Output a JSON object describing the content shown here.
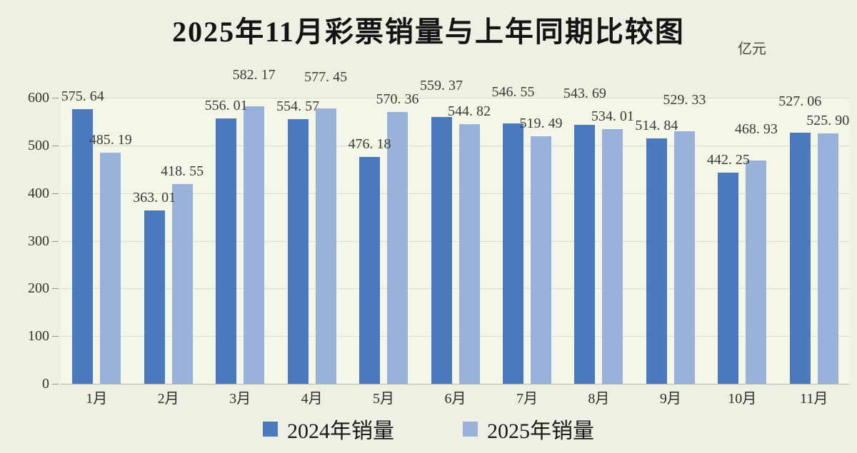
{
  "window": {
    "background_color": "#EDF0E2",
    "plot_background_color": "#F4F6EA"
  },
  "chart_data": {
    "type": "bar",
    "title": "2025年11月彩票销量与上年同期比较图",
    "unit": "亿元",
    "categories": [
      "1月",
      "2月",
      "3月",
      "4月",
      "5月",
      "6月",
      "7月",
      "8月",
      "9月",
      "10月",
      "11月"
    ],
    "series": [
      {
        "name": "2024年销量",
        "color": "#4A79BE",
        "values": [
          575.64,
          363.01,
          556.01,
          554.57,
          476.18,
          559.37,
          546.55,
          543.69,
          514.84,
          442.25,
          527.06
        ]
      },
      {
        "name": "2025年销量",
        "color": "#9AB2DA",
        "values": [
          485.19,
          418.55,
          582.17,
          577.45,
          570.36,
          544.82,
          519.49,
          534.01,
          529.33,
          468.93,
          525.9
        ]
      }
    ],
    "ylim": [
      0,
      600
    ],
    "yticks": [
      0,
      100,
      200,
      300,
      400,
      500,
      600
    ],
    "grid": true,
    "data_labels": true,
    "legend_position": "bottom",
    "grid_color": "#d9dbcd",
    "label_color": "#3a3c33"
  }
}
